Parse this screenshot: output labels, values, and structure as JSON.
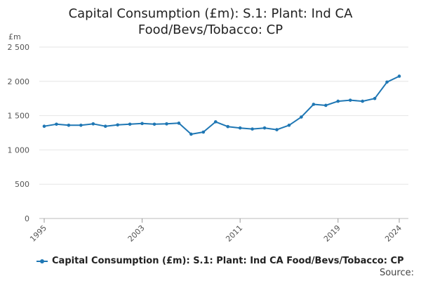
{
  "chart_data": {
    "type": "line",
    "title_lines": [
      "Capital Consumption (£m): S.1: Plant: Ind CA",
      "Food/Bevs/Tobacco: CP"
    ],
    "ylabel": "£m",
    "ylim": [
      0,
      2500
    ],
    "y_ticks": [
      0,
      500,
      1000,
      1500,
      2000,
      2500
    ],
    "y_tick_labels": [
      "0",
      "500",
      "1 000",
      "1 500",
      "2 000",
      "2 500"
    ],
    "x_range": [
      1995,
      2024
    ],
    "x_ticks": [
      1995,
      2003,
      2011,
      2019,
      2024
    ],
    "x_tick_labels": [
      "1995",
      "2003",
      "2011",
      "2019",
      "2024"
    ],
    "grid": true,
    "legend_position": "bottom-left",
    "series": [
      {
        "name": "Capital Consumption (£m): S.1: Plant: Ind CA Food/Bevs/Tobacco: CP",
        "color": "#1f77b4",
        "x": [
          1995,
          1996,
          1997,
          1998,
          1999,
          2000,
          2001,
          2002,
          2003,
          2004,
          2005,
          2006,
          2007,
          2008,
          2009,
          2010,
          2011,
          2012,
          2013,
          2014,
          2015,
          2016,
          2017,
          2018,
          2019,
          2020,
          2021,
          2022,
          2023,
          2024
        ],
        "values": [
          1345,
          1375,
          1360,
          1360,
          1380,
          1345,
          1365,
          1375,
          1385,
          1375,
          1380,
          1390,
          1230,
          1260,
          1410,
          1340,
          1320,
          1305,
          1320,
          1295,
          1360,
          1480,
          1665,
          1650,
          1710,
          1725,
          1710,
          1750,
          1990,
          2075
        ]
      }
    ]
  },
  "legend": {
    "label": "Capital Consumption (£m): S.1: Plant: Ind CA Food/Bevs/Tobacco: CP"
  },
  "footer": {
    "source": "Source:"
  }
}
